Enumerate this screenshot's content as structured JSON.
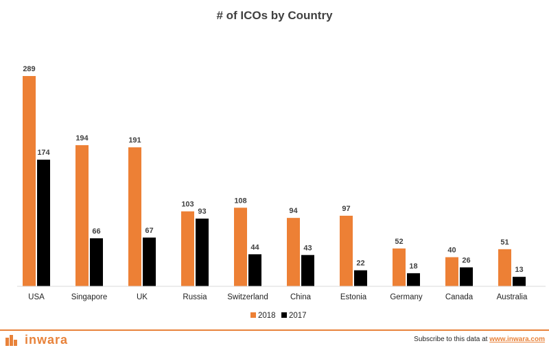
{
  "chart_data": {
    "type": "bar",
    "title": "# of ICOs by Country",
    "categories": [
      "USA",
      "Singapore",
      "UK",
      "Russia",
      "Switzerland",
      "China",
      "Estonia",
      "Germany",
      "Canada",
      "Australia"
    ],
    "series": [
      {
        "name": "2018",
        "color": "#ed8035",
        "values": [
          289,
          194,
          191,
          103,
          108,
          94,
          97,
          52,
          40,
          51
        ]
      },
      {
        "name": "2017",
        "color": "#000000",
        "values": [
          174,
          66,
          67,
          93,
          44,
          43,
          22,
          18,
          26,
          13
        ]
      }
    ],
    "ylim": [
      0,
      289
    ],
    "grid": false,
    "legend": "bottom-center"
  },
  "footer": {
    "brand": "inwara",
    "subscribe_text": "Subscribe to this data at",
    "subscribe_link": "www.inwara.com"
  }
}
